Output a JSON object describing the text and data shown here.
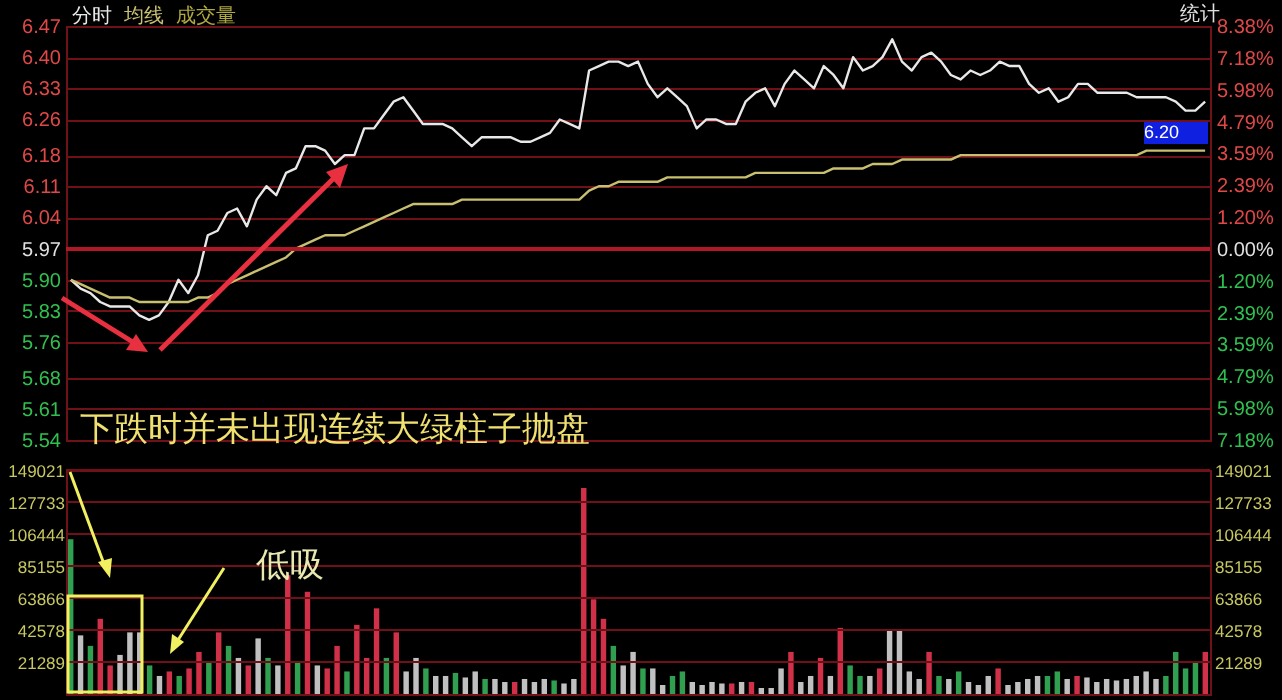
{
  "chart_data": [
    {
      "type": "line",
      "grid": "y",
      "categories": [
        null,
        null,
        null,
        null,
        null,
        null,
        null,
        null,
        null,
        null,
        null,
        null,
        null,
        null,
        null,
        null,
        null,
        null,
        null,
        null,
        null,
        null,
        null,
        null,
        null,
        null,
        null,
        null,
        null,
        null,
        null,
        null,
        null,
        null,
        null,
        null,
        null,
        null,
        null,
        null,
        null,
        null,
        null,
        null,
        null,
        null,
        null,
        null,
        null,
        null,
        null,
        null,
        null,
        null,
        null,
        null,
        null,
        null,
        null,
        null,
        null,
        null,
        null,
        null,
        null,
        null,
        null,
        null,
        null,
        null,
        null,
        null,
        null,
        null,
        null,
        null,
        null,
        null,
        null,
        null,
        null,
        null,
        null,
        null,
        null,
        null,
        null,
        null,
        null,
        null,
        null,
        null,
        null,
        null,
        null,
        null,
        null,
        null,
        null,
        null,
        null,
        null,
        null,
        null,
        null,
        null,
        null,
        null,
        null,
        null,
        null,
        null,
        null,
        null,
        null,
        null,
        null
      ],
      "series": [
        {
          "name": "分时",
          "color": "#e8e8e8",
          "values": [
            5.9,
            5.88,
            5.87,
            5.85,
            5.84,
            5.84,
            5.84,
            5.82,
            5.81,
            5.82,
            5.85,
            5.9,
            5.87,
            5.91,
            6.0,
            6.01,
            6.05,
            6.06,
            6.02,
            6.08,
            6.11,
            6.09,
            6.14,
            6.15,
            6.2,
            6.2,
            6.19,
            6.16,
            6.18,
            6.18,
            6.24,
            6.24,
            6.27,
            6.3,
            6.31,
            6.28,
            6.25,
            6.25,
            6.25,
            6.24,
            6.22,
            6.2,
            6.22,
            6.22,
            6.22,
            6.22,
            6.21,
            6.21,
            6.22,
            6.23,
            6.26,
            6.25,
            6.24,
            6.37,
            6.38,
            6.39,
            6.39,
            6.38,
            6.39,
            6.34,
            6.31,
            6.33,
            6.31,
            6.29,
            6.24,
            6.26,
            6.26,
            6.25,
            6.25,
            6.3,
            6.32,
            6.33,
            6.29,
            6.34,
            6.37,
            6.35,
            6.33,
            6.38,
            6.36,
            6.33,
            6.4,
            6.37,
            6.38,
            6.4,
            6.44,
            6.39,
            6.37,
            6.4,
            6.41,
            6.39,
            6.36,
            6.35,
            6.37,
            6.36,
            6.37,
            6.39,
            6.38,
            6.38,
            6.34,
            6.32,
            6.33,
            6.3,
            6.31,
            6.34,
            6.34,
            6.32,
            6.32,
            6.32,
            6.32,
            6.31,
            6.31,
            6.31,
            6.31,
            6.3,
            6.28,
            6.28,
            6.3
          ]
        },
        {
          "name": "均线",
          "color": "#c8c070",
          "values": [
            5.9,
            5.89,
            5.88,
            5.87,
            5.86,
            5.86,
            5.86,
            5.85,
            5.85,
            5.85,
            5.85,
            5.85,
            5.85,
            5.86,
            5.86,
            5.87,
            5.89,
            5.9,
            5.91,
            5.92,
            5.93,
            5.94,
            5.95,
            5.97,
            5.98,
            5.99,
            6.0,
            6.0,
            6.0,
            6.01,
            6.02,
            6.03,
            6.04,
            6.05,
            6.06,
            6.07,
            6.07,
            6.07,
            6.07,
            6.07,
            6.08,
            6.08,
            6.08,
            6.08,
            6.08,
            6.08,
            6.08,
            6.08,
            6.08,
            6.08,
            6.08,
            6.08,
            6.08,
            6.1,
            6.11,
            6.11,
            6.12,
            6.12,
            6.12,
            6.12,
            6.12,
            6.13,
            6.13,
            6.13,
            6.13,
            6.13,
            6.13,
            6.13,
            6.13,
            6.13,
            6.14,
            6.14,
            6.14,
            6.14,
            6.14,
            6.14,
            6.14,
            6.14,
            6.15,
            6.15,
            6.15,
            6.15,
            6.16,
            6.16,
            6.16,
            6.17,
            6.17,
            6.17,
            6.17,
            6.17,
            6.17,
            6.18,
            6.18,
            6.18,
            6.18,
            6.18,
            6.18,
            6.18,
            6.18,
            6.18,
            6.18,
            6.18,
            6.18,
            6.18,
            6.18,
            6.18,
            6.18,
            6.18,
            6.18,
            6.18,
            6.19,
            6.19,
            6.19,
            6.19,
            6.19,
            6.19,
            6.19
          ]
        }
      ],
      "ylim": [
        5.54,
        6.47
      ],
      "yticks": [
        6.47,
        {
          "value": 6.4,
          "label": "6.40"
        },
        6.33,
        6.26,
        6.18,
        6.11,
        6.04,
        5.97,
        {
          "value": 5.9,
          "label": "5.90"
        },
        5.83,
        5.76,
        5.68,
        5.61,
        5.54
      ],
      "y2lim": [
        -7.18,
        8.38
      ],
      "y2ticks": [
        {
          "value": 8.38,
          "label": "8.38%"
        },
        {
          "value": 7.18,
          "label": "7.18%"
        },
        {
          "value": 5.98,
          "label": "5.98%"
        },
        {
          "value": 4.79,
          "label": "4.79%"
        },
        {
          "value": 3.59,
          "label": "3.59%"
        },
        {
          "value": 2.39,
          "label": "2.39%"
        },
        {
          "value": 1.2,
          "label": "1.20%"
        },
        {
          "value": 0,
          "label": "0.00%"
        },
        {
          "value": -1.2,
          "label": "1.20%"
        },
        {
          "value": -2.39,
          "label": "2.39%"
        },
        {
          "value": -3.59,
          "label": "3.59%"
        },
        {
          "value": -4.79,
          "label": "4.79%"
        },
        {
          "value": -5.98,
          "label": "5.98%"
        },
        {
          "value": -7.18,
          "label": "7.18%"
        }
      ],
      "ref_lines": [
        {
          "axis": "y2",
          "value": 0,
          "color": "#b01828"
        }
      ],
      "annotations": [
        "统计",
        "6.20",
        "下跌时并未出现连续大绿柱子抛盘"
      ]
    },
    {
      "type": "bar",
      "grid": "y",
      "categories": [
        null,
        null,
        null,
        null,
        null,
        null,
        null,
        null,
        null,
        null,
        null,
        null,
        null,
        null,
        null,
        null,
        null,
        null,
        null,
        null,
        null,
        null,
        null,
        null,
        null,
        null,
        null,
        null,
        null,
        null,
        null,
        null,
        null,
        null,
        null,
        null,
        null,
        null,
        null,
        null,
        null,
        null,
        null,
        null,
        null,
        null,
        null,
        null,
        null,
        null,
        null,
        null,
        null,
        null,
        null,
        null,
        null,
        null,
        null,
        null,
        null,
        null,
        null,
        null,
        null,
        null,
        null,
        null,
        null,
        null,
        null,
        null,
        null,
        null,
        null,
        null,
        null,
        null,
        null,
        null,
        null,
        null,
        null,
        null,
        null,
        null,
        null,
        null,
        null,
        null,
        null,
        null,
        null,
        null,
        null,
        null,
        null,
        null,
        null,
        null,
        null,
        null,
        null,
        null,
        null,
        null,
        null,
        null,
        null,
        null,
        null,
        null,
        null,
        null,
        null,
        null
      ],
      "series": [
        {
          "name": "成交量",
          "values": [
            103000,
            39000,
            32000,
            50000,
            19000,
            26000,
            41000,
            41000,
            19000,
            12000,
            15000,
            12000,
            17000,
            28000,
            21000,
            41000,
            32000,
            24000,
            19000,
            37000,
            24000,
            19000,
            79000,
            21000,
            68000,
            19000,
            17000,
            32000,
            15000,
            46000,
            24000,
            57000,
            24000,
            41000,
            15000,
            24000,
            17000,
            12000,
            12000,
            14000,
            11000,
            15000,
            10000,
            10000,
            8000,
            8000,
            10000,
            8000,
            10000,
            9000,
            7000,
            10000,
            137000,
            63000,
            50000,
            32000,
            19000,
            28000,
            17000,
            17000,
            6000,
            12000,
            15000,
            8000,
            6000,
            8000,
            7000,
            7000,
            8000,
            8000,
            4000,
            4000,
            17000,
            28000,
            8000,
            12000,
            24000,
            12000,
            44000,
            19000,
            12000,
            12000,
            17000,
            43000,
            43000,
            15000,
            10000,
            28000,
            12000,
            10000,
            15000,
            8000,
            6000,
            12000,
            17000,
            6000,
            8000,
            10000,
            12000,
            12000,
            15000,
            10000,
            12000,
            11000,
            8000,
            10000,
            9000,
            10000,
            12000,
            15000,
            10000,
            12000,
            28000,
            17000,
            21000,
            28000
          ],
          "colors": [
            "#30a050",
            "#c0c0c0",
            "#30a050",
            "#d03048",
            "#d03048",
            "#c0c0c0",
            "#c0c0c0",
            "#c0c0c0",
            "#30a050",
            "#c0c0c0",
            "#d03048",
            "#30a050",
            "#d03048",
            "#d03048",
            "#30a050",
            "#d03048",
            "#30a050",
            "#c0c0c0",
            "#d03048",
            "#c0c0c0",
            "#30a050",
            "#c0c0c0",
            "#d03048",
            "#30a050",
            "#d03048",
            "#c0c0c0",
            "#d03048",
            "#d03048",
            "#30a050",
            "#d03048",
            "#d03048",
            "#d03048",
            "#30a050",
            "#d03048",
            "#c0c0c0",
            "#c0c0c0",
            "#30a050",
            "#c0c0c0",
            "#c0c0c0",
            "#30a050",
            "#c0c0c0",
            "#c0c0c0",
            "#30a050",
            "#c0c0c0",
            "#c0c0c0",
            "#d03048",
            "#c0c0c0",
            "#c0c0c0",
            "#c0c0c0",
            "#30a050",
            "#c0c0c0",
            "#c0c0c0",
            "#d03048",
            "#d03048",
            "#d03048",
            "#30a050",
            "#c0c0c0",
            "#c0c0c0",
            "#30a050",
            "#c0c0c0",
            "#c0c0c0",
            "#30a050",
            "#30a050",
            "#c0c0c0",
            "#c0c0c0",
            "#c0c0c0",
            "#c0c0c0",
            "#d03048",
            "#c0c0c0",
            "#d03048",
            "#c0c0c0",
            "#c0c0c0",
            "#c0c0c0",
            "#d03048",
            "#c0c0c0",
            "#c0c0c0",
            "#d03048",
            "#c0c0c0",
            "#d03048",
            "#30a050",
            "#30a050",
            "#c0c0c0",
            "#d03048",
            "#c0c0c0",
            "#c0c0c0",
            "#c0c0c0",
            "#c0c0c0",
            "#d03048",
            "#30a050",
            "#c0c0c0",
            "#30a050",
            "#c0c0c0",
            "#c0c0c0",
            "#c0c0c0",
            "#d03048",
            "#c0c0c0",
            "#c0c0c0",
            "#c0c0c0",
            "#c0c0c0",
            "#30a050",
            "#30a050",
            "#c0c0c0",
            "#d03048",
            "#c0c0c0",
            "#c0c0c0",
            "#c0c0c0",
            "#c0c0c0",
            "#c0c0c0",
            "#c0c0c0",
            "#c0c0c0",
            "#c0c0c0",
            "#30a050",
            "#30a050",
            "#30a050",
            "#30a050",
            "#d03048"
          ]
        }
      ],
      "ylim": [
        0,
        149021
      ],
      "yticks": [
        21289,
        42578,
        63866,
        85155,
        106444,
        127733,
        149021
      ],
      "y2lim": [
        0,
        149021
      ],
      "y2ticks": [
        21289,
        42578,
        63866,
        85155,
        106444,
        127733,
        149021
      ],
      "annotations": [
        "低吸"
      ]
    }
  ]
}
